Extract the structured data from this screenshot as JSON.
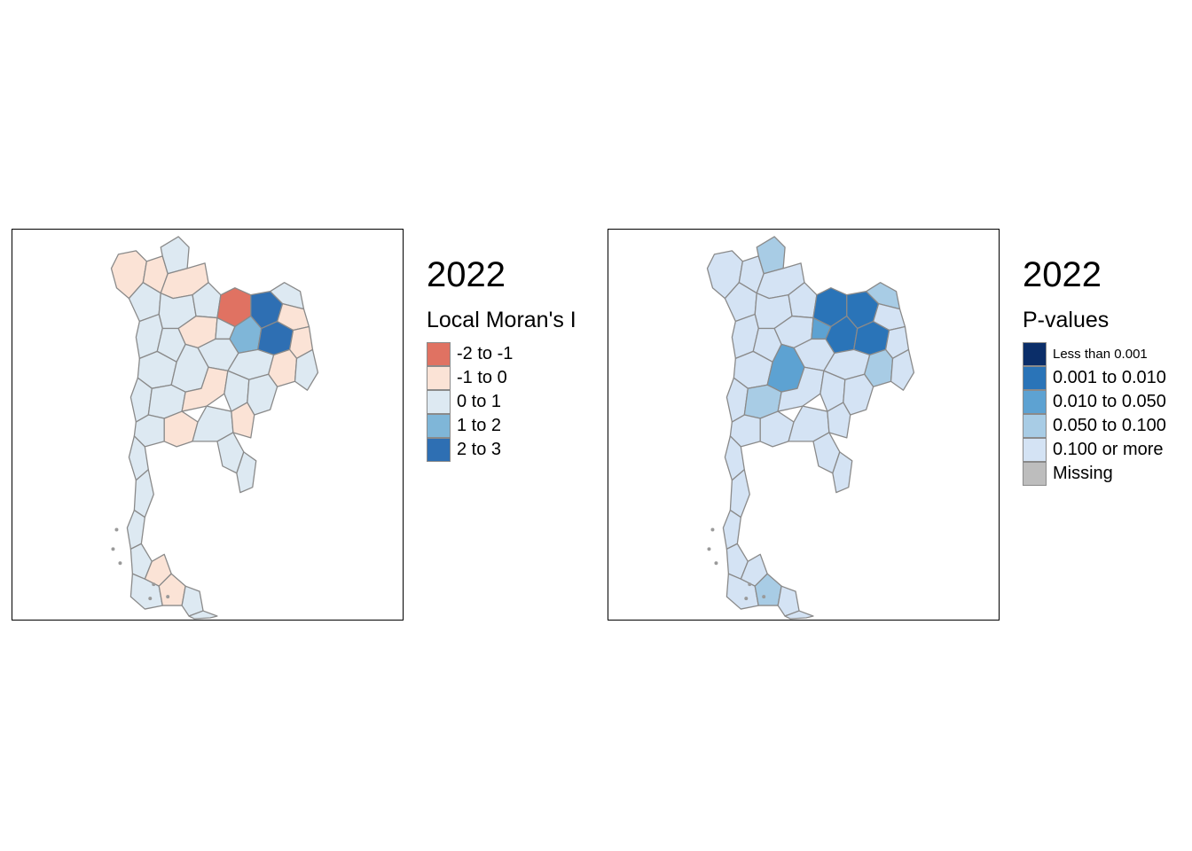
{
  "colors": {
    "border": "#8a8a8a",
    "moran": {
      "neg2_neg1": "#e07262",
      "neg1_0": "#fbe3d6",
      "0_1": "#dde9f2",
      "1_2": "#7fb6d8",
      "2_3": "#2e6fb3"
    },
    "pvalue": {
      "lt_0001": "#0b2e69",
      "p_0001_0010": "#2a74b8",
      "p_0010_0050": "#5da2d2",
      "p_0050_0100": "#a8cce5",
      "p_0100_more": "#d4e3f4",
      "missing": "#bdbdbd"
    }
  },
  "left": {
    "year": "2022",
    "title": "Local Moran's I",
    "legend": [
      {
        "label": "-2 to -1",
        "color": "#e07262"
      },
      {
        "label": "-1 to 0",
        "color": "#fbe3d6"
      },
      {
        "label": "0 to 1",
        "color": "#dde9f2"
      },
      {
        "label": "1 to 2",
        "color": "#7fb6d8"
      },
      {
        "label": "2 to 3",
        "color": "#2e6fb3"
      }
    ]
  },
  "right": {
    "year": "2022",
    "title": "P-values",
    "legend": [
      {
        "label": "Less than 0.001",
        "color": "#0b2e69"
      },
      {
        "label": "0.001 to 0.010",
        "color": "#2a74b8"
      },
      {
        "label": "0.010 to 0.050",
        "color": "#5da2d2"
      },
      {
        "label": "0.050 to 0.100",
        "color": "#a8cce5"
      },
      {
        "label": "0.100 or more",
        "color": "#d4e3f4"
      },
      {
        "label": "Missing",
        "color": "#bdbdbd"
      }
    ]
  }
}
